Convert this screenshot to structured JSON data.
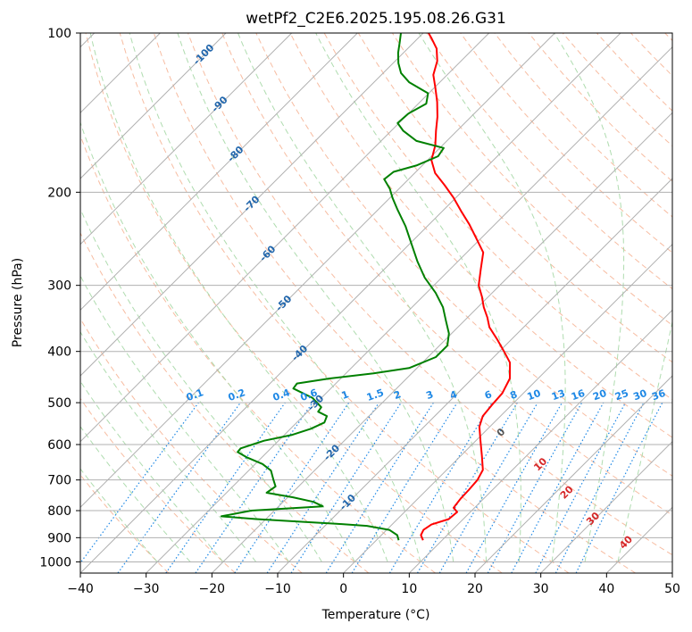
{
  "chart_data": {
    "type": "line",
    "title": "wetPf2_C2E6.2025.195.08.26.G31",
    "xlabel": "Temperature (°C)",
    "ylabel": "Pressure (hPa)",
    "xlim": [
      -40,
      50
    ],
    "ylim": [
      1050,
      100
    ],
    "y_scale": "log",
    "skew": 45,
    "x_ticks": [
      "−40",
      "−30",
      "−20",
      "−10",
      "0",
      "10",
      "20",
      "30",
      "40",
      "50"
    ],
    "x_tick_values": [
      -40,
      -30,
      -20,
      -10,
      0,
      10,
      20,
      30,
      40,
      50
    ],
    "y_ticks": [
      "100",
      "200",
      "300",
      "400",
      "500",
      "600",
      "700",
      "800",
      "900",
      "1000"
    ],
    "y_tick_values": [
      100,
      200,
      300,
      400,
      500,
      600,
      700,
      800,
      900,
      1000
    ],
    "grid": true,
    "colors": {
      "temperature": "#ff0000",
      "dewpoint": "#008000",
      "isotherm_grid": "#b0b0b0",
      "dry_adiabat": "#f4a582",
      "moist_adiabat": "#a6d8a6",
      "mixing_ratio": "#1e88e5",
      "isotherm_label": "#2166ac",
      "lcl_label": "#d62728"
    },
    "series": [
      {
        "key": "temperature",
        "points": [
          [
            7.1,
            910
          ],
          [
            6.0,
            890
          ],
          [
            5.6,
            870
          ],
          [
            6.0,
            850
          ],
          [
            7.8,
            830
          ],
          [
            8.0,
            805
          ],
          [
            6.8,
            790
          ],
          [
            6.5,
            760
          ],
          [
            6.4,
            730
          ],
          [
            6.2,
            700
          ],
          [
            5.5,
            670
          ],
          [
            3.2,
            630
          ],
          [
            0.7,
            590
          ],
          [
            -1.6,
            555
          ],
          [
            -2.7,
            530
          ],
          [
            -3.0,
            505
          ],
          [
            -3.2,
            480
          ],
          [
            -4.3,
            450
          ],
          [
            -6.7,
            420
          ],
          [
            -9.3,
            400
          ],
          [
            -12.1,
            380
          ],
          [
            -15.2,
            360
          ],
          [
            -17.0,
            345
          ],
          [
            -19.1,
            330
          ],
          [
            -21.0,
            315
          ],
          [
            -23.2,
            300
          ],
          [
            -25.3,
            280
          ],
          [
            -27.5,
            260
          ],
          [
            -30.6,
            245
          ],
          [
            -33.9,
            230
          ],
          [
            -37.2,
            217
          ],
          [
            -40.3,
            205
          ],
          [
            -43.6,
            194
          ],
          [
            -46.9,
            184
          ],
          [
            -49.4,
            174
          ],
          [
            -51.1,
            163
          ],
          [
            -53.2,
            153
          ],
          [
            -55.1,
            144
          ],
          [
            -57.4,
            135
          ],
          [
            -59.8,
            127
          ],
          [
            -62.1,
            120
          ],
          [
            -63.6,
            113
          ],
          [
            -65.6,
            107
          ],
          [
            -68.1,
            102
          ],
          [
            -69.2,
            100
          ]
        ]
      },
      {
        "key": "dewpoint",
        "points": [
          [
            3.4,
            910
          ],
          [
            2.4,
            890
          ],
          [
            0.4,
            870
          ],
          [
            -3.6,
            855
          ],
          [
            -8.6,
            847
          ],
          [
            -13.9,
            840
          ],
          [
            -21.5,
            830
          ],
          [
            -27.2,
            820
          ],
          [
            -23.5,
            800
          ],
          [
            -13.3,
            785
          ],
          [
            -15.4,
            770
          ],
          [
            -19.2,
            755
          ],
          [
            -23.9,
            740
          ],
          [
            -23.5,
            720
          ],
          [
            -24.8,
            700
          ],
          [
            -26.6,
            672
          ],
          [
            -28.9,
            653
          ],
          [
            -32.2,
            635
          ],
          [
            -34.5,
            620
          ],
          [
            -34.6,
            610
          ],
          [
            -33.4,
            600
          ],
          [
            -32.2,
            590
          ],
          [
            -28.8,
            575
          ],
          [
            -26.9,
            560
          ],
          [
            -25.8,
            545
          ],
          [
            -26.4,
            530
          ],
          [
            -28.4,
            520
          ],
          [
            -28.6,
            510
          ],
          [
            -31.3,
            490
          ],
          [
            -35.7,
            470
          ],
          [
            -35.9,
            460
          ],
          [
            -31.7,
            450
          ],
          [
            -25.8,
            440
          ],
          [
            -21.2,
            430
          ],
          [
            -18.8,
            410
          ],
          [
            -18.8,
            390
          ],
          [
            -20.4,
            370
          ],
          [
            -22.8,
            350
          ],
          [
            -25.3,
            330
          ],
          [
            -28.6,
            310
          ],
          [
            -32.6,
            290
          ],
          [
            -36.2,
            270
          ],
          [
            -39.8,
            250
          ],
          [
            -43.3,
            232
          ],
          [
            -47.0,
            216
          ],
          [
            -49.6,
            205
          ],
          [
            -51.4,
            197
          ],
          [
            -53.7,
            189
          ],
          [
            -53.4,
            183
          ],
          [
            -50.9,
            178
          ],
          [
            -49.0,
            171
          ],
          [
            -49.4,
            165
          ],
          [
            -54.6,
            160
          ],
          [
            -58.2,
            153
          ],
          [
            -60.2,
            148
          ],
          [
            -60.0,
            142
          ],
          [
            -58.8,
            136
          ],
          [
            -60.1,
            130
          ],
          [
            -64.6,
            124
          ],
          [
            -67.3,
            119
          ],
          [
            -69.2,
            114
          ],
          [
            -70.8,
            109
          ],
          [
            -72.2,
            104
          ],
          [
            -73.4,
            100
          ]
        ]
      }
    ],
    "isotherm_labels": [
      "-100",
      "-90",
      "-80",
      "-70",
      "-60",
      "-50",
      "-40",
      "-30",
      "-20",
      "-10"
    ],
    "isotherm_label_values": [
      -100,
      -90,
      -80,
      -70,
      -60,
      -50,
      -40,
      -30,
      -20,
      -10
    ],
    "mixing_ratio_labels": [
      "0.1",
      "0.2",
      "0.4",
      "0.6",
      "1",
      "1.5",
      "2",
      "3",
      "4",
      "6",
      "8",
      "10",
      "13",
      "16",
      "20",
      "25",
      "30",
      "36"
    ],
    "mixing_ratio_values": [
      0.1,
      0.2,
      0.4,
      0.6,
      1,
      1.5,
      2,
      3,
      4,
      6,
      8,
      10,
      13,
      16,
      20,
      25,
      30,
      36
    ],
    "lcl_labels": [
      "0",
      "10",
      "20",
      "30",
      "40"
    ],
    "lcl_values": [
      0,
      10,
      20,
      30,
      40
    ]
  }
}
